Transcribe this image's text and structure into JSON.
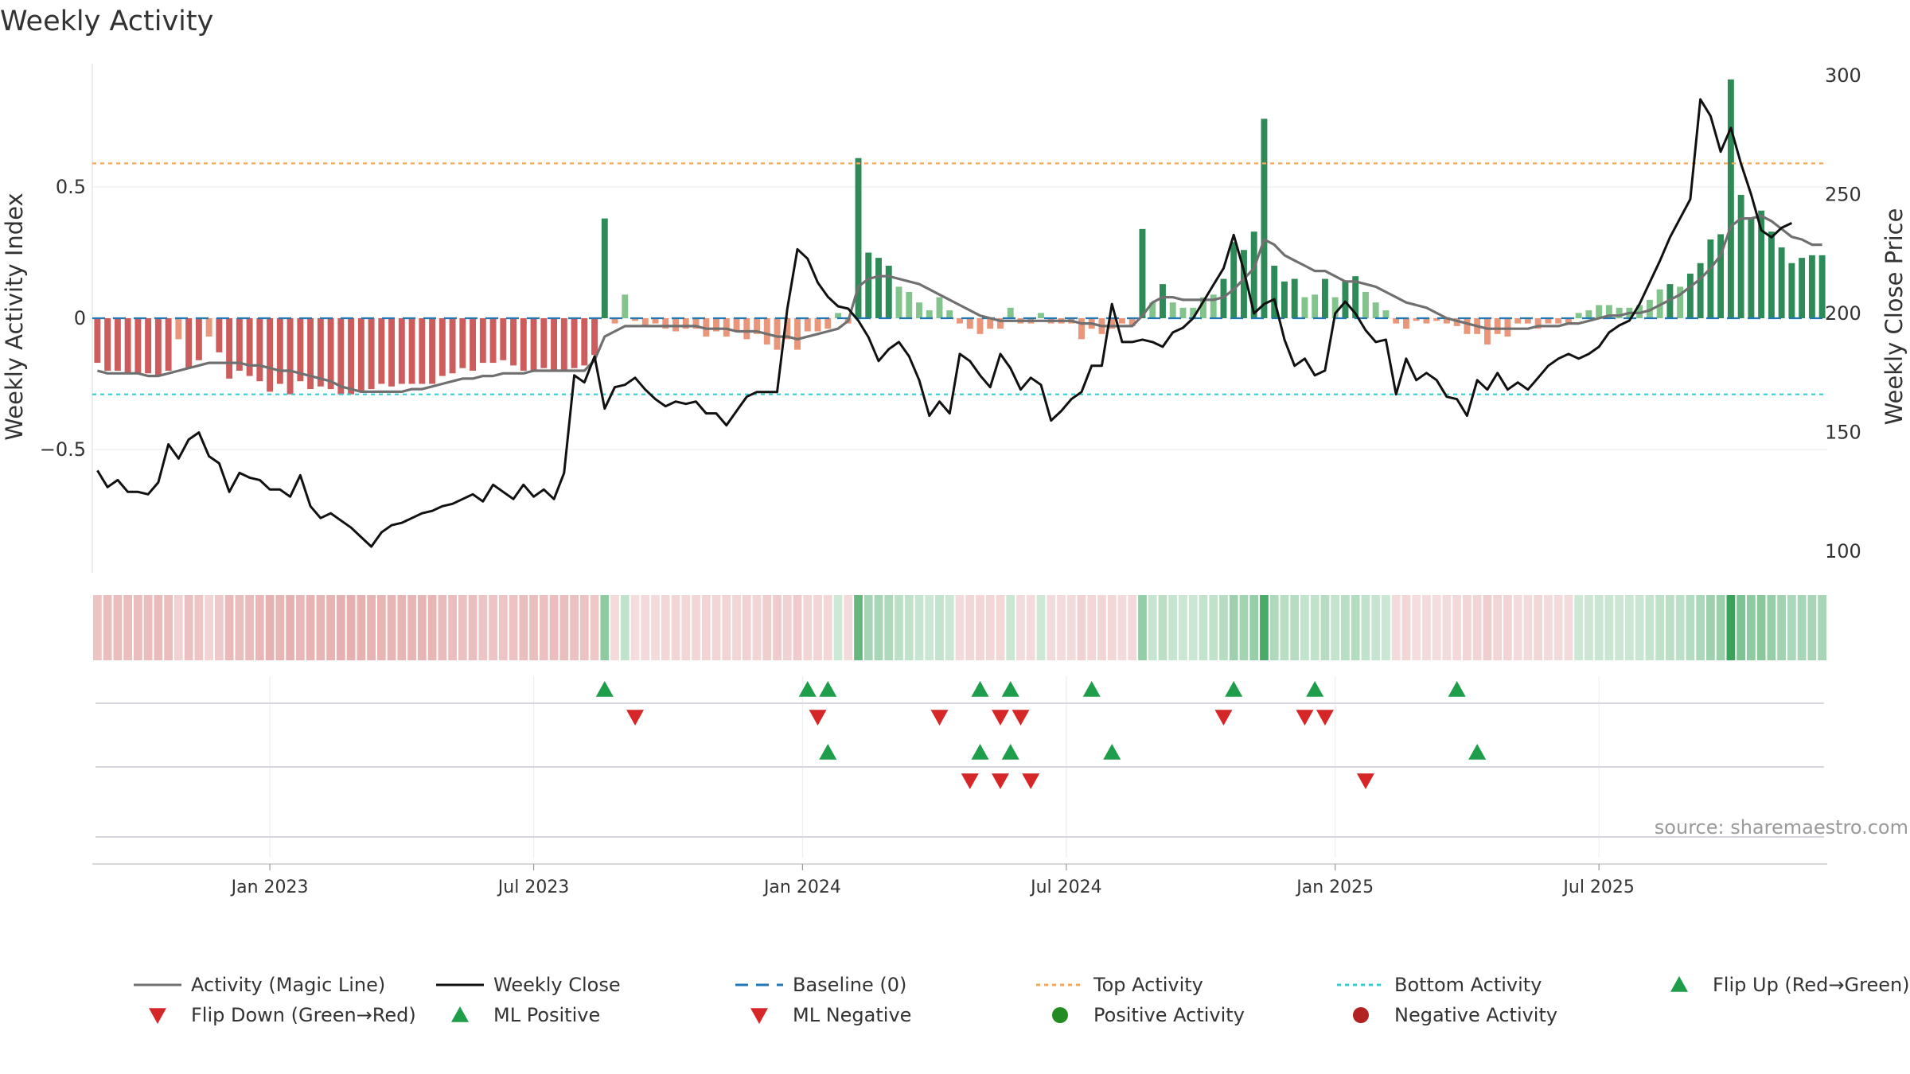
{
  "chart_data": {
    "type": "bar",
    "title": "Weekly Activity",
    "ylabel_left": "Weekly Activity Index",
    "ylabel_right": "Weekly Close Price",
    "ylim_left": [
      -0.97,
      0.97
    ],
    "ylim_right": [
      91,
      305
    ],
    "yticks_left": [
      {
        "v": 0.5,
        "label": "0.5"
      },
      {
        "v": 0,
        "label": "0"
      },
      {
        "v": -0.5,
        "label": "−0.5"
      }
    ],
    "yticks_right": [
      {
        "v": 100,
        "label": "100"
      },
      {
        "v": 150,
        "label": "150"
      },
      {
        "v": 200,
        "label": "200"
      },
      {
        "v": 250,
        "label": "250"
      },
      {
        "v": 300,
        "label": "300"
      }
    ],
    "xticks": [
      {
        "w": 17.5,
        "label": "Jan 2023"
      },
      {
        "w": 43.5,
        "label": "Jul 2023"
      },
      {
        "w": 70,
        "label": "Jan 2024"
      },
      {
        "w": 96,
        "label": "Jul 2024"
      },
      {
        "w": 122.5,
        "label": "Jan 2025"
      },
      {
        "w": 148.5,
        "label": "Jul 2025"
      }
    ],
    "top_activity": 0.59,
    "bottom_activity": -0.29,
    "colors": {
      "pos_strong": "#2e8b57",
      "pos_light": "#82c48b",
      "neg_strong": "#cd5c5c",
      "neg_light": "#e9967a",
      "magic": "#707070",
      "close": "#111111",
      "baseline": "#1f77b4",
      "top": "#f0a860",
      "bottom": "#40c8d0",
      "up_marker": "#1e9e4a",
      "down_marker": "#d62728",
      "pos_dot": "#228b22",
      "neg_dot": "#b22222"
    },
    "activity": [
      -0.17,
      -0.2,
      -0.2,
      -0.21,
      -0.21,
      -0.21,
      -0.22,
      -0.2,
      -0.08,
      -0.19,
      -0.16,
      -0.07,
      -0.13,
      -0.23,
      -0.2,
      -0.22,
      -0.24,
      -0.28,
      -0.25,
      -0.29,
      -0.24,
      -0.27,
      -0.26,
      -0.27,
      -0.29,
      -0.29,
      -0.28,
      -0.27,
      -0.25,
      -0.26,
      -0.25,
      -0.25,
      -0.25,
      -0.25,
      -0.22,
      -0.21,
      -0.19,
      -0.2,
      -0.17,
      -0.17,
      -0.16,
      -0.18,
      -0.2,
      -0.2,
      -0.19,
      -0.2,
      -0.2,
      -0.19,
      -0.18,
      -0.14,
      0.38,
      -0.02,
      0.09,
      -0.01,
      -0.03,
      -0.02,
      -0.04,
      -0.05,
      -0.04,
      -0.04,
      -0.07,
      -0.05,
      -0.07,
      -0.05,
      -0.08,
      -0.06,
      -0.1,
      -0.12,
      -0.08,
      -0.12,
      -0.05,
      -0.05,
      -0.04,
      0.02,
      -0.02,
      0.61,
      0.25,
      0.23,
      0.2,
      0.12,
      0.1,
      0.06,
      0.03,
      0.08,
      0.03,
      -0.02,
      -0.04,
      -0.06,
      -0.04,
      -0.04,
      0.04,
      -0.02,
      -0.02,
      0.02,
      -0.02,
      -0.02,
      -0.02,
      -0.08,
      -0.04,
      -0.06,
      -0.04,
      -0.02,
      -0.03,
      0.34,
      0.06,
      0.13,
      0.06,
      0.04,
      0.04,
      0.08,
      0.09,
      0.15,
      0.29,
      0.26,
      0.33,
      0.76,
      0.2,
      0.14,
      0.15,
      0.08,
      0.09,
      0.15,
      0.08,
      0.14,
      0.16,
      0.1,
      0.06,
      0.03,
      -0.02,
      -0.04,
      -0.01,
      -0.02,
      -0.01,
      -0.02,
      -0.03,
      -0.06,
      -0.06,
      -0.1,
      -0.06,
      -0.07,
      -0.02,
      -0.02,
      -0.04,
      -0.02,
      -0.02,
      -0.02,
      0.02,
      0.03,
      0.05,
      0.05,
      0.04,
      0.04,
      0.05,
      0.07,
      0.11,
      0.13,
      0.12,
      0.17,
      0.21,
      0.3,
      0.32,
      0.91,
      0.47,
      0.38,
      0.41,
      0.33,
      0.27,
      0.21,
      0.23,
      0.24,
      0.24
    ],
    "magic_line": [
      -0.2,
      -0.21,
      -0.21,
      -0.21,
      -0.21,
      -0.22,
      -0.22,
      -0.21,
      -0.2,
      -0.19,
      -0.18,
      -0.17,
      -0.17,
      -0.17,
      -0.17,
      -0.18,
      -0.18,
      -0.19,
      -0.2,
      -0.2,
      -0.21,
      -0.22,
      -0.23,
      -0.24,
      -0.26,
      -0.27,
      -0.28,
      -0.28,
      -0.28,
      -0.28,
      -0.28,
      -0.27,
      -0.27,
      -0.26,
      -0.25,
      -0.24,
      -0.23,
      -0.23,
      -0.22,
      -0.22,
      -0.21,
      -0.21,
      -0.21,
      -0.2,
      -0.2,
      -0.2,
      -0.2,
      -0.2,
      -0.2,
      -0.16,
      -0.07,
      -0.05,
      -0.03,
      -0.03,
      -0.03,
      -0.03,
      -0.03,
      -0.03,
      -0.03,
      -0.03,
      -0.04,
      -0.04,
      -0.04,
      -0.05,
      -0.05,
      -0.05,
      -0.06,
      -0.07,
      -0.07,
      -0.08,
      -0.07,
      -0.06,
      -0.05,
      -0.04,
      -0.01,
      0.12,
      0.15,
      0.16,
      0.16,
      0.15,
      0.14,
      0.13,
      0.11,
      0.09,
      0.07,
      0.05,
      0.03,
      0.01,
      0.0,
      -0.01,
      -0.01,
      -0.01,
      -0.01,
      -0.01,
      -0.01,
      -0.01,
      -0.01,
      -0.02,
      -0.02,
      -0.03,
      -0.03,
      -0.03,
      -0.03,
      0.01,
      0.06,
      0.08,
      0.08,
      0.07,
      0.07,
      0.07,
      0.07,
      0.08,
      0.11,
      0.15,
      0.19,
      0.3,
      0.28,
      0.24,
      0.22,
      0.2,
      0.18,
      0.18,
      0.16,
      0.14,
      0.14,
      0.13,
      0.12,
      0.1,
      0.08,
      0.06,
      0.05,
      0.04,
      0.02,
      0.0,
      -0.01,
      -0.02,
      -0.03,
      -0.04,
      -0.04,
      -0.04,
      -0.04,
      -0.04,
      -0.03,
      -0.03,
      -0.03,
      -0.02,
      -0.02,
      -0.01,
      0.0,
      0.01,
      0.01,
      0.02,
      0.02,
      0.03,
      0.05,
      0.07,
      0.09,
      0.12,
      0.15,
      0.19,
      0.24,
      0.35,
      0.38,
      0.38,
      0.39,
      0.37,
      0.34,
      0.31,
      0.3,
      0.28,
      0.28
    ],
    "weekly_close": [
      134,
      127,
      130,
      125,
      125,
      124,
      129,
      145,
      139,
      147,
      150,
      140,
      137,
      125,
      133,
      131,
      130,
      126,
      126,
      123,
      132,
      119,
      114,
      116,
      113,
      110,
      106,
      102,
      108,
      111,
      112,
      114,
      116,
      117,
      119,
      120,
      122,
      124,
      121,
      128,
      125,
      122,
      128,
      123,
      126,
      122,
      133,
      174,
      171,
      182,
      160,
      169,
      170,
      173,
      168,
      164,
      161,
      163,
      162,
      163,
      158,
      158,
      153,
      159,
      165,
      167,
      167,
      167,
      202,
      227,
      223,
      213,
      207,
      203,
      202,
      197,
      190,
      180,
      185,
      188,
      182,
      172,
      157,
      163,
      158,
      183,
      180,
      174,
      169,
      183,
      177,
      168,
      173,
      170,
      155,
      159,
      164,
      167,
      178,
      178,
      204,
      188,
      188,
      189,
      188,
      186,
      192,
      194,
      198,
      205,
      212,
      219,
      233,
      218,
      200,
      204,
      206,
      189,
      178,
      181,
      174,
      176,
      200,
      205,
      200,
      193,
      188,
      189,
      166,
      181,
      172,
      175,
      172,
      165,
      164,
      157,
      172,
      168,
      175,
      168,
      171,
      168,
      173,
      178,
      181,
      183,
      181,
      183,
      186,
      192,
      195,
      197,
      204,
      213,
      222,
      232,
      240,
      248,
      290,
      283,
      268,
      278,
      263,
      250,
      235,
      232,
      236,
      238
    ],
    "flip_up": [
      50,
      70,
      72,
      87,
      90,
      98,
      112,
      120,
      134
    ],
    "flip_down": [
      53,
      71,
      83,
      89,
      91,
      111,
      119,
      121
    ],
    "ml_positive": [
      72,
      87,
      90,
      100,
      136
    ],
    "ml_negative": [
      86,
      89,
      92,
      125
    ],
    "source_label": "source: sharemaestro.com",
    "legend": [
      {
        "key": "magic",
        "label": "Activity (Magic Line)"
      },
      {
        "key": "close",
        "label": "Weekly Close"
      },
      {
        "key": "baseline",
        "label": "Baseline (0)"
      },
      {
        "key": "top",
        "label": "Top Activity"
      },
      {
        "key": "bottom",
        "label": "Bottom Activity"
      },
      {
        "key": "flip_up",
        "label": "Flip Up (Red→Green)"
      },
      {
        "key": "flip_down",
        "label": "Flip Down (Green→Red)"
      },
      {
        "key": "ml_pos",
        "label": "ML Positive"
      },
      {
        "key": "ml_neg",
        "label": "ML Negative"
      },
      {
        "key": "pos_act",
        "label": "Positive Activity"
      },
      {
        "key": "neg_act",
        "label": "Negative Activity"
      }
    ]
  }
}
